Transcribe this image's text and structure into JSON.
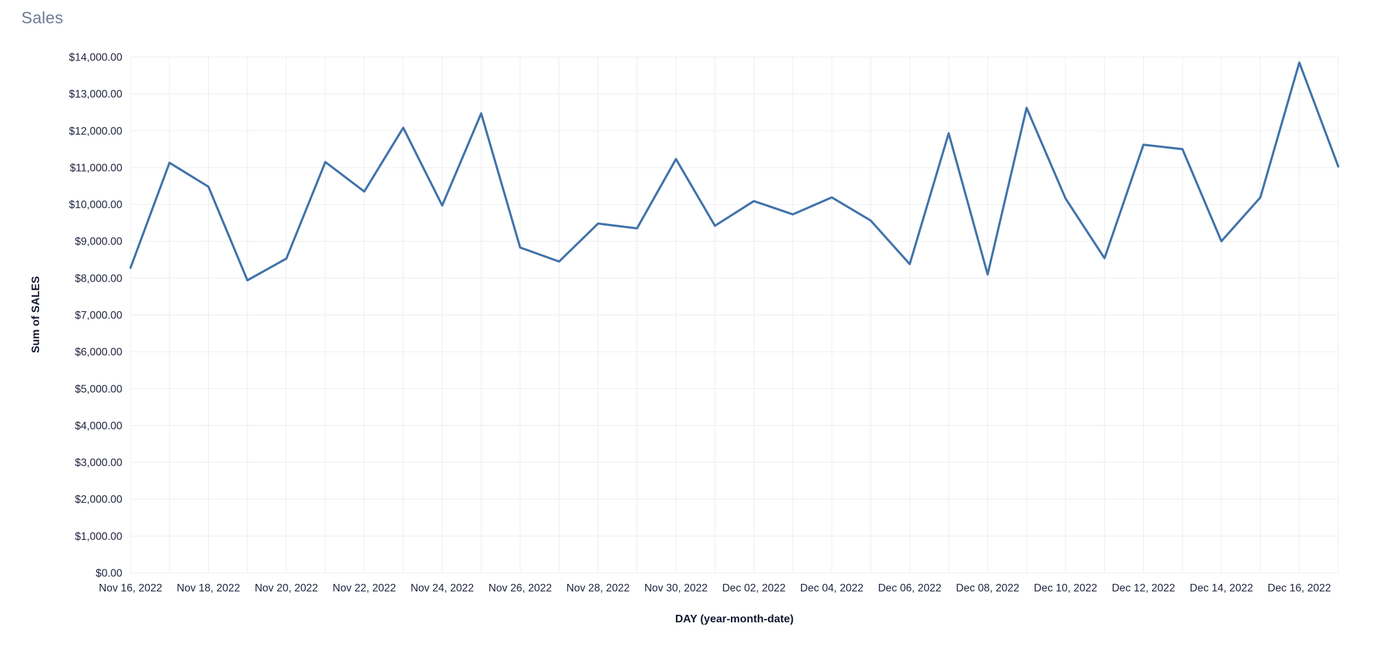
{
  "title": "Sales",
  "colors": {
    "line": "#4173a9",
    "grid": "#ededf2",
    "tick_text": "#20243f",
    "axis_title_text": "#14182f",
    "title_text": "#6f7b94",
    "background": "#ffffff"
  },
  "chart_data": {
    "type": "line",
    "title": "Sales",
    "xlabel": "DAY (year-month-date)",
    "ylabel": "Sum of SALES",
    "legend": "none",
    "grid": true,
    "ylim": [
      0,
      14000
    ],
    "y_tick_labels": [
      "$0.00",
      "$1,000.00",
      "$2,000.00",
      "$3,000.00",
      "$4,000.00",
      "$5,000.00",
      "$6,000.00",
      "$7,000.00",
      "$8,000.00",
      "$9,000.00",
      "$10,000.00",
      "$11,000.00",
      "$12,000.00",
      "$13,000.00",
      "$14,000.00"
    ],
    "x_label_every": 2,
    "x": [
      "Nov 16, 2022",
      "Nov 17, 2022",
      "Nov 18, 2022",
      "Nov 19, 2022",
      "Nov 20, 2022",
      "Nov 21, 2022",
      "Nov 22, 2022",
      "Nov 23, 2022",
      "Nov 24, 2022",
      "Nov 25, 2022",
      "Nov 26, 2022",
      "Nov 27, 2022",
      "Nov 28, 2022",
      "Nov 29, 2022",
      "Nov 30, 2022",
      "Dec 01, 2022",
      "Dec 02, 2022",
      "Dec 03, 2022",
      "Dec 04, 2022",
      "Dec 05, 2022",
      "Dec 06, 2022",
      "Dec 07, 2022",
      "Dec 08, 2022",
      "Dec 09, 2022",
      "Dec 10, 2022",
      "Dec 11, 2022",
      "Dec 12, 2022",
      "Dec 13, 2022",
      "Dec 14, 2022",
      "Dec 15, 2022",
      "Dec 16, 2022",
      "Dec 17, 2022"
    ],
    "series": [
      {
        "name": "Sum of SALES",
        "values": [
          8280,
          11130,
          10480,
          7940,
          8530,
          11150,
          10350,
          12080,
          9970,
          12470,
          8830,
          8450,
          9480,
          9350,
          11230,
          9420,
          10090,
          9730,
          10190,
          9560,
          8380,
          11930,
          8100,
          12620,
          10160,
          8540,
          11620,
          11500,
          9000,
          10190,
          13850,
          11030
        ]
      }
    ]
  }
}
